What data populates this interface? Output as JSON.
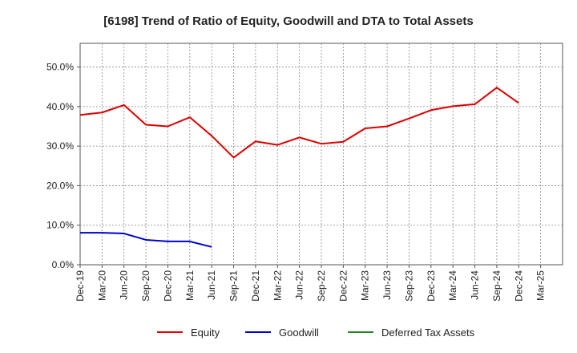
{
  "chart_data": {
    "type": "line",
    "title": "[6198]  Trend of Ratio of Equity, Goodwill and DTA to Total Assets",
    "xlabel": "",
    "ylabel": "",
    "ylim": [
      0,
      56
    ],
    "y_ticks": [
      0,
      10,
      20,
      30,
      40,
      50
    ],
    "y_tick_labels": [
      "0.0%",
      "10.0%",
      "20.0%",
      "30.0%",
      "40.0%",
      "50.0%"
    ],
    "grid": true,
    "legend_position": "bottom",
    "categories": [
      "Dec-19",
      "Mar-20",
      "Jun-20",
      "Sep-20",
      "Dec-20",
      "Mar-21",
      "Jun-21",
      "Sep-21",
      "Dec-21",
      "Mar-22",
      "Jun-22",
      "Sep-22",
      "Dec-22",
      "Mar-23",
      "Jun-23",
      "Sep-23",
      "Dec-23",
      "Mar-24",
      "Jun-24",
      "Sep-24",
      "Dec-24",
      "Mar-25"
    ],
    "series": [
      {
        "name": "Equity",
        "color": "#dd0000",
        "values": [
          37.9,
          38.5,
          40.4,
          35.4,
          35.0,
          37.3,
          32.6,
          27.1,
          31.2,
          30.3,
          32.2,
          30.6,
          31.1,
          34.5,
          35.0,
          37.0,
          39.1,
          40.1,
          40.6,
          44.8,
          40.9,
          null
        ]
      },
      {
        "name": "Goodwill",
        "color": "#0000cc",
        "values": [
          8.1,
          8.1,
          7.9,
          6.3,
          5.9,
          5.9,
          4.5,
          null,
          null,
          null,
          null,
          null,
          null,
          null,
          null,
          null,
          null,
          null,
          null,
          null,
          null,
          null
        ]
      },
      {
        "name": "Deferred Tax Assets",
        "color": "#228822",
        "values": [
          null,
          null,
          null,
          null,
          null,
          null,
          null,
          null,
          null,
          null,
          null,
          null,
          null,
          null,
          null,
          null,
          null,
          null,
          null,
          null,
          null,
          null
        ]
      }
    ]
  }
}
